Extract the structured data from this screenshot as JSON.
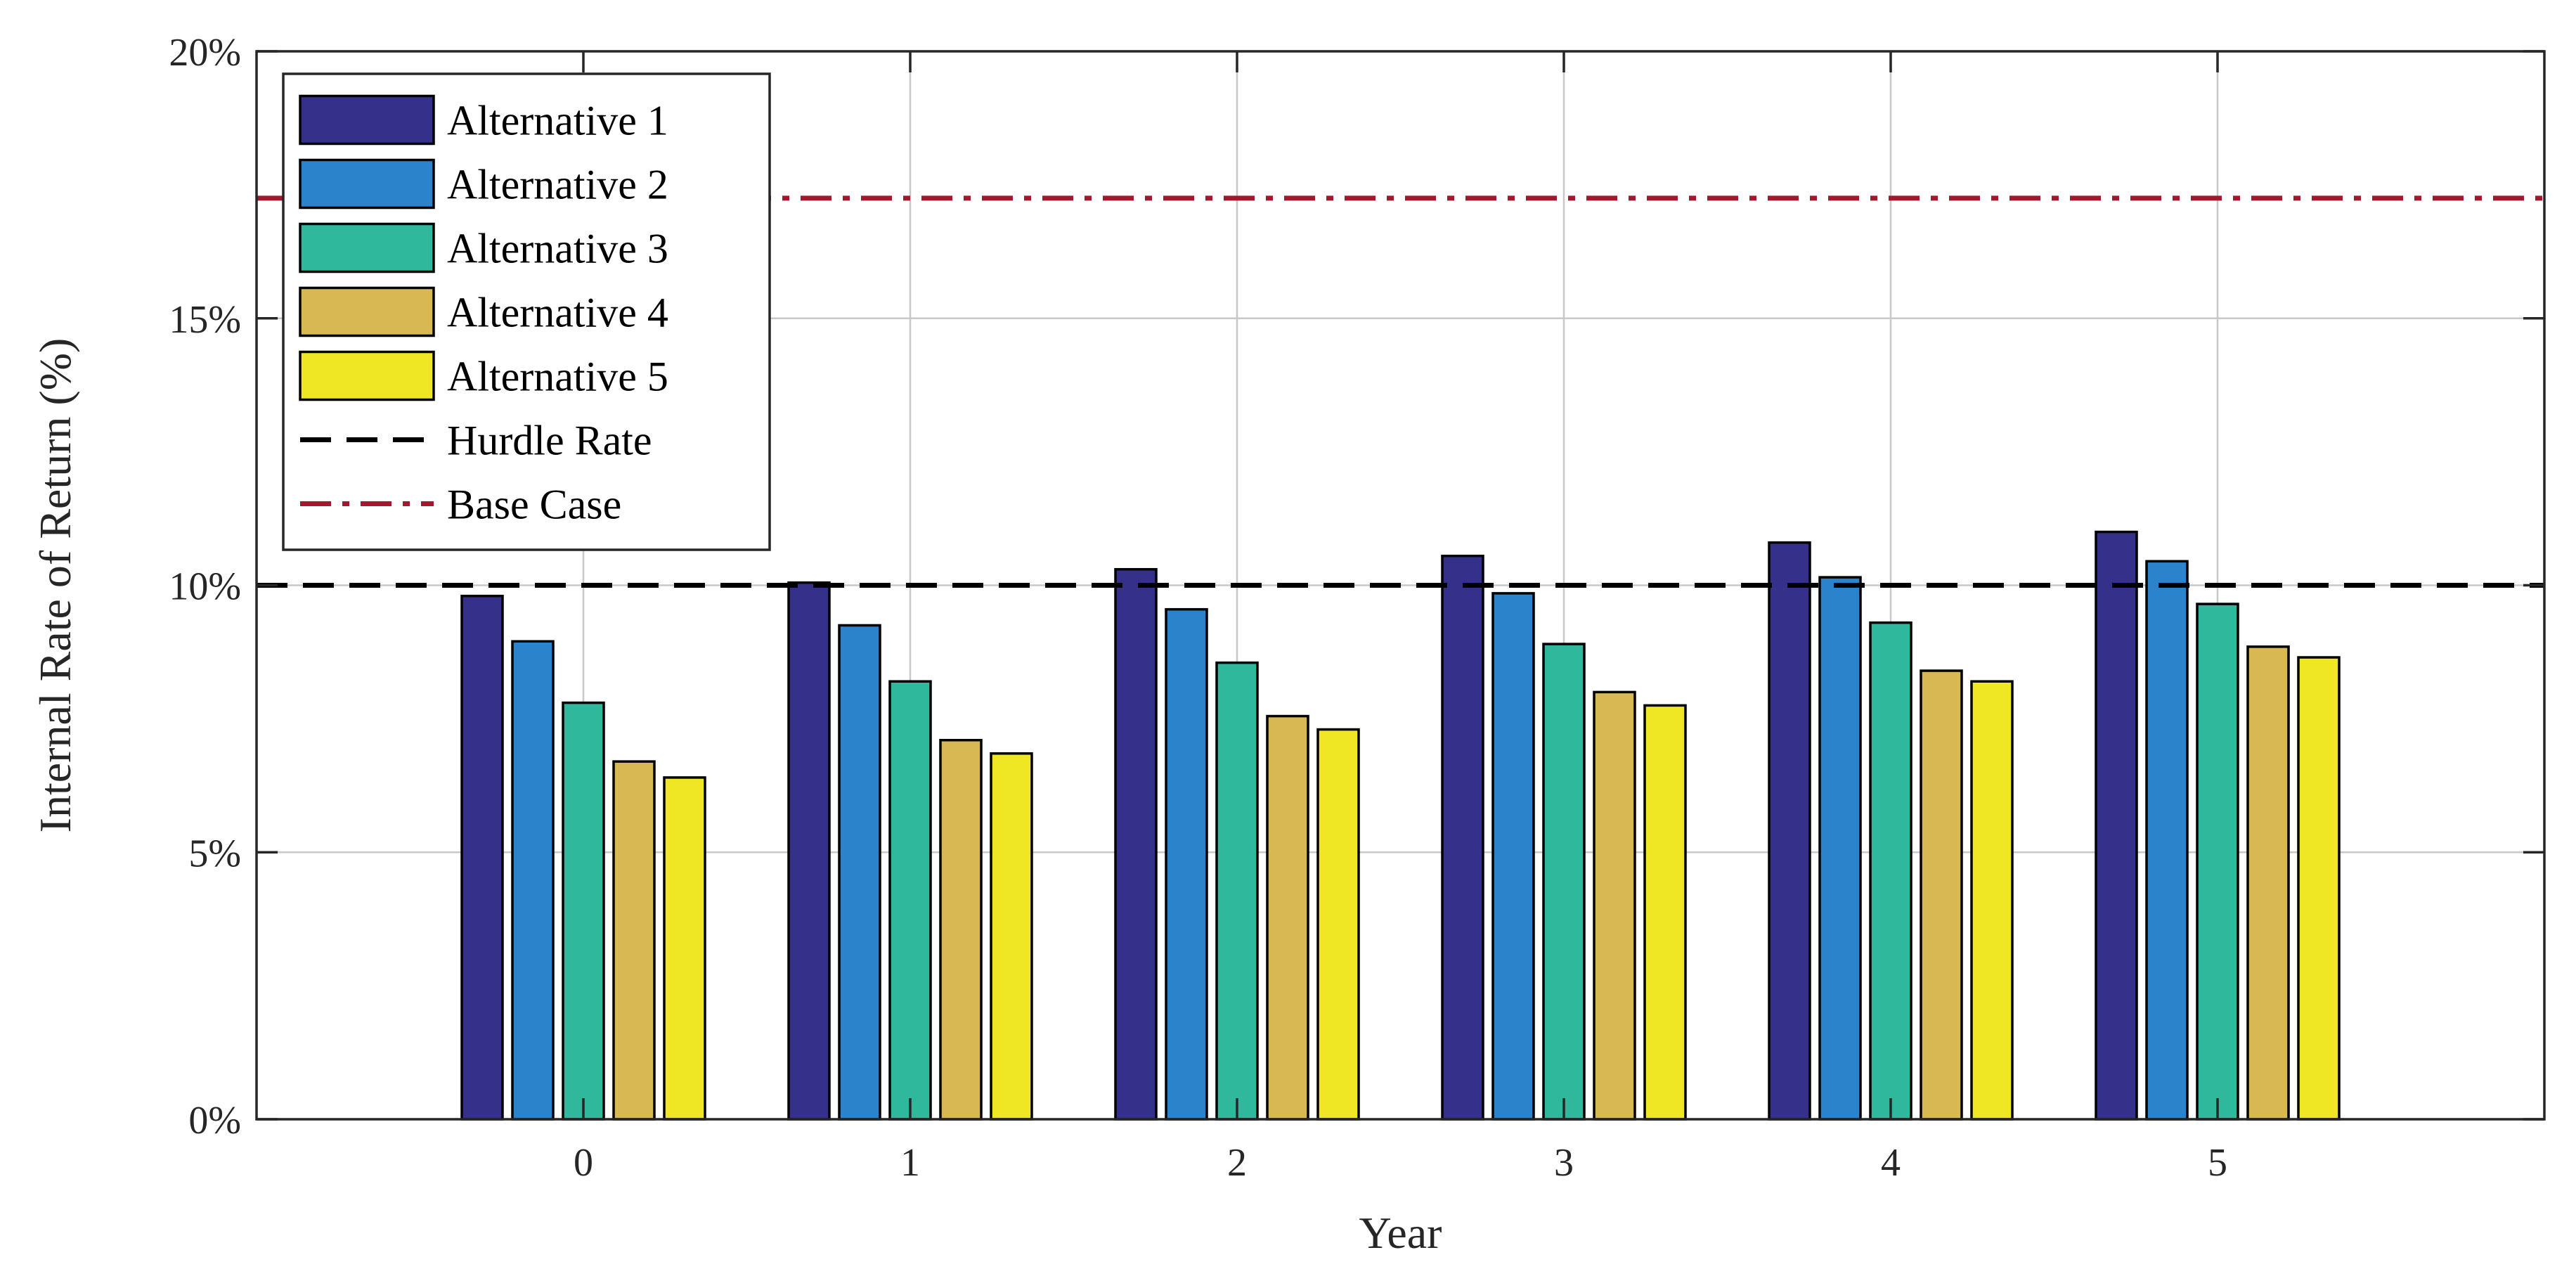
{
  "chart_data": {
    "type": "bar",
    "title": "",
    "xlabel": "Year",
    "ylabel": "Internal Rate of Return (%)",
    "categories": [
      "0",
      "1",
      "2",
      "3",
      "4",
      "5"
    ],
    "ylim": [
      0,
      20
    ],
    "yticks": [
      0,
      5,
      10,
      15,
      20
    ],
    "ytick_labels": [
      "0%",
      "5%",
      "10%",
      "15%",
      "20%"
    ],
    "grid": true,
    "legend_position": "top-left",
    "series": [
      {
        "name": "Alternative 1",
        "color": "#35318A",
        "values": [
          9.8,
          10.05,
          10.3,
          10.55,
          10.8,
          11.0
        ]
      },
      {
        "name": "Alternative 2",
        "color": "#2A83CB",
        "values": [
          8.95,
          9.25,
          9.55,
          9.85,
          10.15,
          10.45
        ]
      },
      {
        "name": "Alternative 3",
        "color": "#2FB89C",
        "values": [
          7.8,
          8.2,
          8.55,
          8.9,
          9.3,
          9.65
        ]
      },
      {
        "name": "Alternative 4",
        "color": "#D7B852",
        "values": [
          6.7,
          7.1,
          7.55,
          8.0,
          8.4,
          8.85
        ]
      },
      {
        "name": "Alternative 5",
        "color": "#F0E724",
        "values": [
          6.4,
          6.85,
          7.3,
          7.75,
          8.2,
          8.65
        ]
      }
    ],
    "reference_lines": [
      {
        "name": "Hurdle Rate",
        "value": 10.0,
        "color": "#000000",
        "style": "dashed"
      },
      {
        "name": "Base Case",
        "value": 17.25,
        "color": "#A2192E",
        "style": "dash-dot"
      }
    ]
  }
}
